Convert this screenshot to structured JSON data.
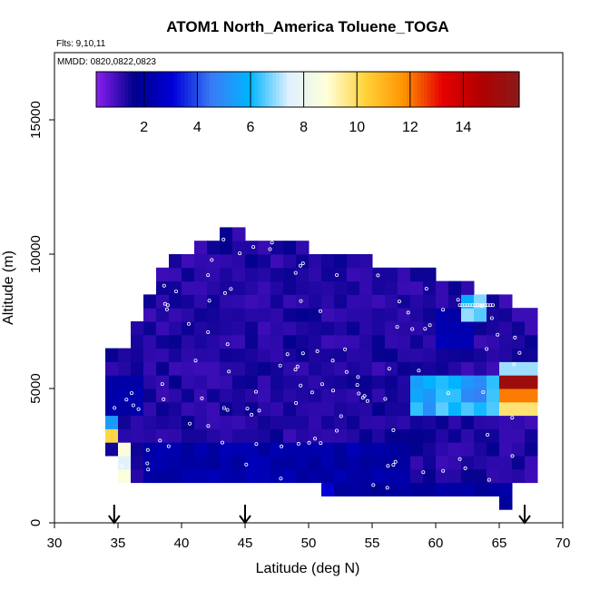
{
  "chart_data": {
    "type": "heatmap",
    "title": "ATOM1 North_America Toluene_TOGA",
    "flights_label": "Flts: 9,10,11",
    "dates_label": "MMDD: 0820,0822,0823",
    "xlabel": "Latitude (deg N)",
    "ylabel": "Altitude (m)",
    "xlim": [
      30,
      70
    ],
    "ylim": [
      0,
      17500
    ],
    "xticks": [
      "30",
      "35",
      "40",
      "45",
      "50",
      "55",
      "60",
      "65",
      "70"
    ],
    "yticks": [
      "0",
      "5000",
      "10000",
      "15000"
    ],
    "colorbar": {
      "ticks": [
        "2",
        "4",
        "6",
        "8",
        "10",
        "12",
        "14"
      ],
      "range": [
        0.2,
        16.1
      ],
      "stops": [
        "#8a1ef0",
        "#00008b",
        "#0000d8",
        "#3a7cf5",
        "#00b4ff",
        "#dff0ff",
        "#ffffd9",
        "#ffd23a",
        "#ff9400",
        "#e60000",
        "#b00000",
        "#8b1a1a"
      ]
    },
    "arrows_lat": [
      34.7,
      45,
      67
    ],
    "grid": false,
    "legend": "top"
  }
}
